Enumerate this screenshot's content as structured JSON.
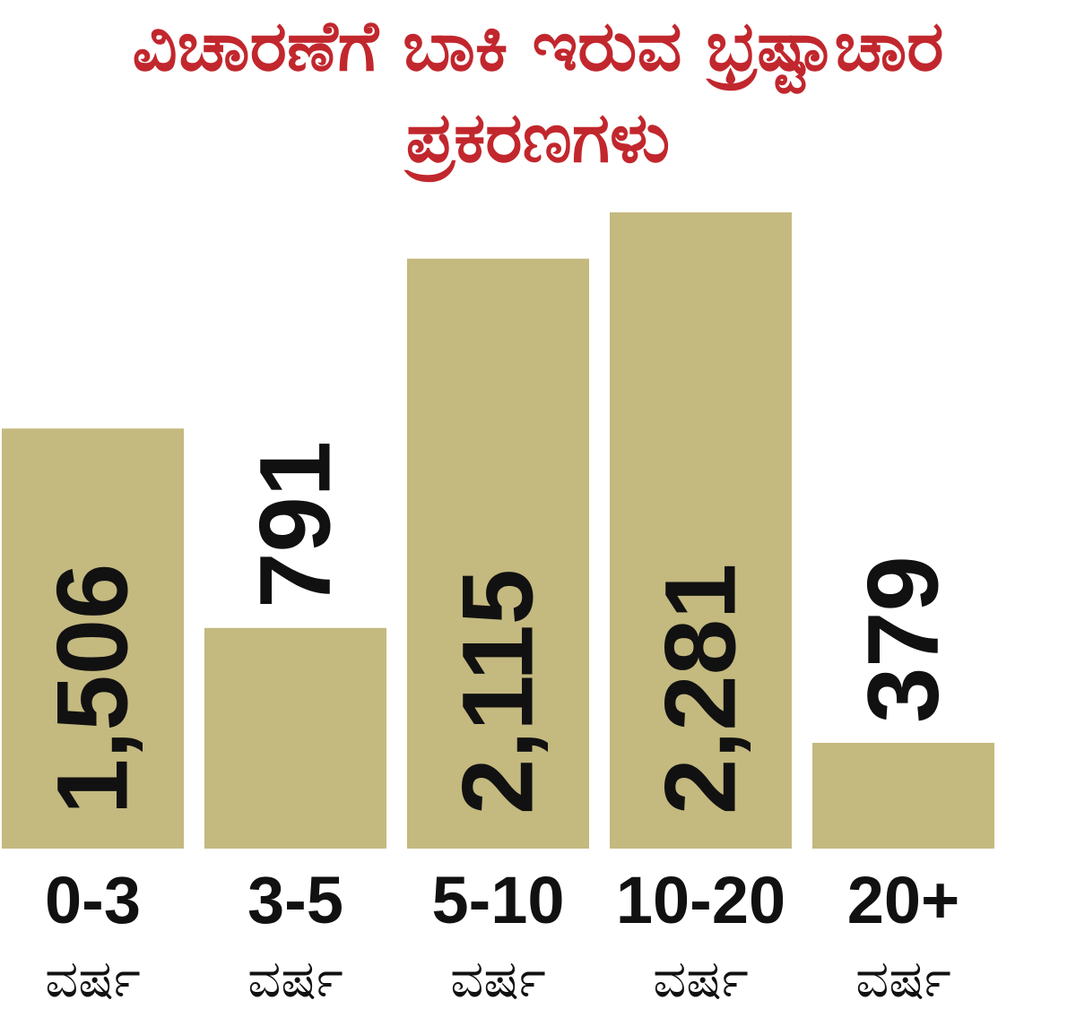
{
  "chart_data": {
    "type": "bar",
    "title_lines": [
      "ವಿಚಾರಣೆಗೆ ಬಾಕಿ ಇರುವ ಭ್ರಷ್ಟಾಚಾರ",
      "ಪ್ರಕರಣಗಳು"
    ],
    "categories": [
      "0-3",
      "3-5",
      "5-10",
      "10-20",
      "20+"
    ],
    "category_unit": "ವರ್ಷ",
    "values": [
      1506,
      791,
      2115,
      2281,
      379
    ],
    "value_labels": [
      "1,506",
      "791",
      "2,115",
      "2,281",
      "379"
    ],
    "ylim": [
      0,
      2281
    ],
    "bar_color": "#c4b97f",
    "title_color": "#c1272d",
    "grid": false,
    "legend": "none"
  }
}
